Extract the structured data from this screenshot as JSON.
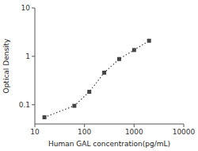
{
  "chart_data": {
    "type": "line",
    "x": [
      15.6,
      62.5,
      125,
      250,
      500,
      1000,
      2000
    ],
    "values": [
      0.055,
      0.095,
      0.185,
      0.46,
      0.88,
      1.35,
      2.1
    ],
    "xlabel": "Human GAL concentration(pg/mL)",
    "ylabel": "Optical Density",
    "xlim": [
      10,
      10000
    ],
    "ylim": [
      0.04,
      10
    ],
    "xticks": [
      10,
      100,
      1000,
      10000
    ],
    "yticks": [
      0.1,
      1,
      10
    ],
    "log": true,
    "color": "#444444",
    "marker": "square",
    "line_style": "dotted"
  }
}
